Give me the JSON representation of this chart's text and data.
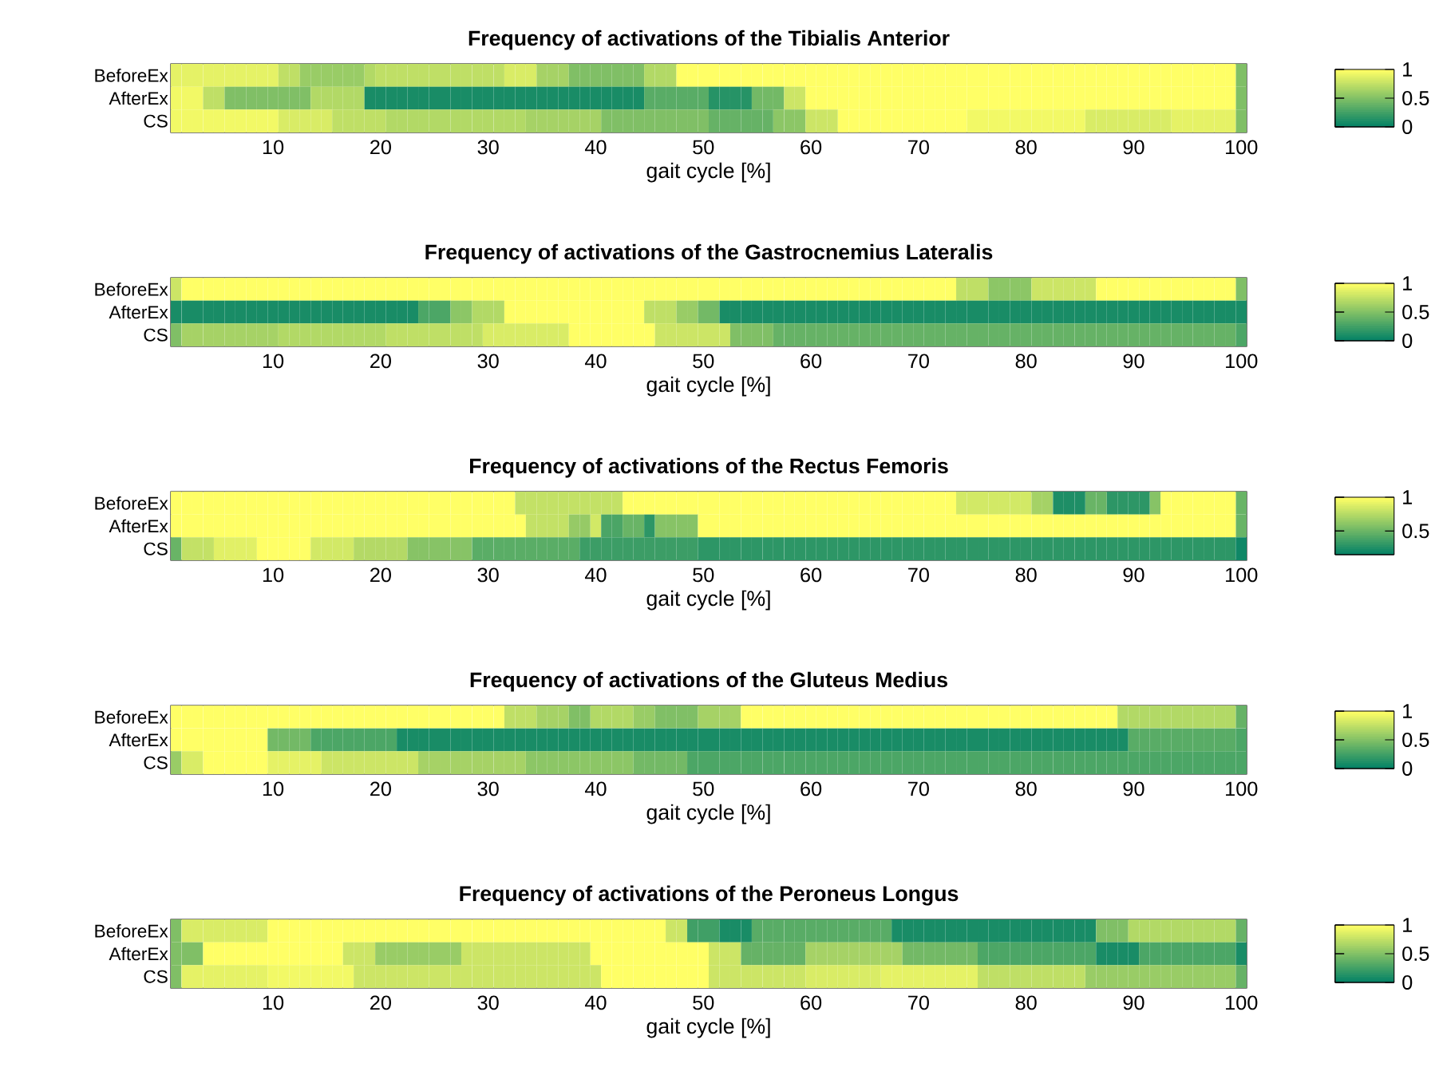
{
  "chart_data": [
    {
      "type": "heatmap",
      "title": "Frequency of activations of the Tibialis Anterior",
      "xlabel": "gait cycle [%]",
      "x": [
        1,
        2,
        3,
        4,
        5,
        6,
        7,
        8,
        9,
        10,
        11,
        12,
        13,
        14,
        15,
        16,
        17,
        18,
        19,
        20,
        21,
        22,
        23,
        24,
        25,
        26,
        27,
        28,
        29,
        30,
        31,
        32,
        33,
        34,
        35,
        36,
        37,
        38,
        39,
        40,
        41,
        42,
        43,
        44,
        45,
        46,
        47,
        48,
        49,
        50,
        51,
        52,
        53,
        54,
        55,
        56,
        57,
        58,
        59,
        60,
        61,
        62,
        63,
        64,
        65,
        66,
        67,
        68,
        69,
        70,
        71,
        72,
        73,
        74,
        75,
        76,
        77,
        78,
        79,
        80,
        81,
        82,
        83,
        84,
        85,
        86,
        87,
        88,
        89,
        90,
        91,
        92,
        93,
        94,
        95,
        96,
        97,
        98,
        99,
        100
      ],
      "xlim": [
        0.5,
        100.5
      ],
      "xticks": [
        10,
        20,
        30,
        40,
        50,
        60,
        70,
        80,
        90,
        100
      ],
      "y_categories": [
        "BeforeEx",
        "AfterEx",
        "CS"
      ],
      "clim": [
        0,
        1
      ],
      "cticks": [
        0,
        0.5,
        1
      ],
      "cells": [
        [
          0.9,
          0.9,
          0.9,
          0.9,
          0.9,
          0.9,
          0.9,
          0.9,
          0.9,
          0.9,
          0.75,
          0.75,
          0.6,
          0.6,
          0.6,
          0.6,
          0.6,
          0.6,
          0.7,
          0.75,
          0.75,
          0.75,
          0.75,
          0.75,
          0.75,
          0.75,
          0.75,
          0.75,
          0.75,
          0.75,
          0.75,
          0.85,
          0.85,
          0.85,
          0.65,
          0.65,
          0.65,
          0.5,
          0.5,
          0.5,
          0.5,
          0.5,
          0.5,
          0.5,
          0.7,
          0.7,
          0.7,
          1,
          1,
          1,
          1,
          1,
          1,
          1,
          1,
          1,
          1,
          1,
          1,
          1,
          1,
          1,
          1,
          1,
          1,
          1,
          1,
          1,
          1,
          1,
          1,
          1,
          1,
          1,
          1,
          1,
          1,
          1,
          1,
          1,
          1,
          1,
          1,
          1,
          1,
          1,
          1,
          1,
          1,
          1,
          1,
          1,
          1,
          1,
          1,
          1,
          1,
          1,
          1,
          0.5
        ],
        [
          0.95,
          0.95,
          0.95,
          0.75,
          0.75,
          0.5,
          0.5,
          0.5,
          0.5,
          0.5,
          0.5,
          0.5,
          0.5,
          0.7,
          0.7,
          0.7,
          0.7,
          0.7,
          0.1,
          0.1,
          0.1,
          0.1,
          0.1,
          0.1,
          0.1,
          0.1,
          0.1,
          0.1,
          0.1,
          0.1,
          0.1,
          0.1,
          0.1,
          0.1,
          0.1,
          0.1,
          0.1,
          0.1,
          0.1,
          0.1,
          0.1,
          0.1,
          0.1,
          0.1,
          0.35,
          0.35,
          0.35,
          0.35,
          0.35,
          0.35,
          0.15,
          0.15,
          0.15,
          0.15,
          0.45,
          0.45,
          0.45,
          0.8,
          0.8,
          1,
          1,
          1,
          1,
          1,
          1,
          1,
          1,
          1,
          1,
          1,
          1,
          1,
          1,
          1,
          1,
          1,
          1,
          1,
          1,
          1,
          1,
          1,
          1,
          1,
          1,
          1,
          1,
          1,
          1,
          1,
          1,
          1,
          1,
          1,
          1,
          1,
          1,
          1,
          1,
          0.5
        ],
        [
          0.95,
          0.95,
          0.95,
          0.95,
          0.95,
          0.95,
          0.95,
          0.95,
          0.95,
          0.95,
          0.85,
          0.85,
          0.85,
          0.85,
          0.85,
          0.75,
          0.75,
          0.75,
          0.75,
          0.75,
          0.7,
          0.7,
          0.7,
          0.7,
          0.7,
          0.7,
          0.7,
          0.7,
          0.7,
          0.7,
          0.7,
          0.7,
          0.7,
          0.65,
          0.65,
          0.65,
          0.65,
          0.65,
          0.65,
          0.65,
          0.5,
          0.5,
          0.5,
          0.5,
          0.5,
          0.5,
          0.5,
          0.5,
          0.5,
          0.5,
          0.4,
          0.4,
          0.4,
          0.4,
          0.4,
          0.4,
          0.55,
          0.55,
          0.55,
          0.8,
          0.8,
          0.8,
          1,
          1,
          1,
          1,
          1,
          1,
          1,
          1,
          1,
          1,
          1,
          1,
          0.95,
          0.95,
          0.95,
          0.95,
          0.95,
          0.95,
          0.95,
          0.95,
          0.95,
          0.95,
          0.95,
          0.85,
          0.85,
          0.85,
          0.85,
          0.85,
          0.85,
          0.85,
          0.85,
          0.9,
          0.9,
          0.9,
          0.9,
          0.9,
          0.9,
          0.5
        ]
      ]
    },
    {
      "type": "heatmap",
      "title": "Frequency of activations of the Gastrocnemius Lateralis",
      "xlabel": "gait cycle [%]",
      "x": [
        1,
        2,
        3,
        4,
        5,
        6,
        7,
        8,
        9,
        10,
        11,
        12,
        13,
        14,
        15,
        16,
        17,
        18,
        19,
        20,
        21,
        22,
        23,
        24,
        25,
        26,
        27,
        28,
        29,
        30,
        31,
        32,
        33,
        34,
        35,
        36,
        37,
        38,
        39,
        40,
        41,
        42,
        43,
        44,
        45,
        46,
        47,
        48,
        49,
        50,
        51,
        52,
        53,
        54,
        55,
        56,
        57,
        58,
        59,
        60,
        61,
        62,
        63,
        64,
        65,
        66,
        67,
        68,
        69,
        70,
        71,
        72,
        73,
        74,
        75,
        76,
        77,
        78,
        79,
        80,
        81,
        82,
        83,
        84,
        85,
        86,
        87,
        88,
        89,
        90,
        91,
        92,
        93,
        94,
        95,
        96,
        97,
        98,
        99,
        100
      ],
      "xlim": [
        0.5,
        100.5
      ],
      "xticks": [
        10,
        20,
        30,
        40,
        50,
        60,
        70,
        80,
        90,
        100
      ],
      "y_categories": [
        "BeforeEx",
        "AfterEx",
        "CS"
      ],
      "clim": [
        0,
        1
      ],
      "cticks": [
        0,
        0.5,
        1
      ],
      "cells": [
        [
          0.8,
          1,
          1,
          1,
          1,
          1,
          1,
          1,
          1,
          1,
          1,
          1,
          1,
          1,
          1,
          1,
          1,
          1,
          1,
          1,
          1,
          1,
          1,
          1,
          1,
          1,
          1,
          1,
          1,
          1,
          1,
          1,
          1,
          1,
          1,
          1,
          1,
          1,
          1,
          1,
          1,
          1,
          1,
          1,
          1,
          1,
          1,
          1,
          1,
          1,
          1,
          1,
          1,
          1,
          1,
          1,
          1,
          1,
          1,
          1,
          1,
          1,
          1,
          1,
          1,
          1,
          1,
          1,
          1,
          1,
          1,
          1,
          1,
          0.75,
          0.75,
          0.75,
          0.55,
          0.55,
          0.55,
          0.55,
          0.8,
          0.8,
          0.8,
          0.8,
          0.8,
          0.8,
          1,
          1,
          1,
          1,
          1,
          1,
          1,
          1,
          1,
          1,
          1,
          1,
          1,
          0.5
        ],
        [
          0.1,
          0.1,
          0.1,
          0.1,
          0.1,
          0.1,
          0.1,
          0.1,
          0.1,
          0.1,
          0.1,
          0.1,
          0.1,
          0.1,
          0.1,
          0.1,
          0.1,
          0.1,
          0.1,
          0.1,
          0.1,
          0.1,
          0.1,
          0.3,
          0.3,
          0.3,
          0.55,
          0.55,
          0.7,
          0.7,
          0.7,
          1,
          1,
          1,
          1,
          1,
          1,
          1,
          1,
          1,
          1,
          1,
          1,
          1,
          0.75,
          0.75,
          0.75,
          0.6,
          0.6,
          0.45,
          0.45,
          0.1,
          0.1,
          0.1,
          0.1,
          0.1,
          0.1,
          0.1,
          0.1,
          0.1,
          0.1,
          0.1,
          0.1,
          0.1,
          0.1,
          0.1,
          0.1,
          0.1,
          0.1,
          0.1,
          0.1,
          0.1,
          0.1,
          0.1,
          0.1,
          0.1,
          0.1,
          0.1,
          0.1,
          0.1,
          0.1,
          0.1,
          0.1,
          0.1,
          0.1,
          0.1,
          0.1,
          0.1,
          0.1,
          0.1,
          0.1,
          0.1,
          0.1,
          0.1,
          0.1,
          0.1,
          0.1,
          0.1,
          0.1,
          0.1
        ],
        [
          0.5,
          0.65,
          0.65,
          0.65,
          0.65,
          0.65,
          0.65,
          0.65,
          0.65,
          0.65,
          0.7,
          0.7,
          0.7,
          0.7,
          0.7,
          0.7,
          0.7,
          0.7,
          0.7,
          0.7,
          0.75,
          0.75,
          0.75,
          0.75,
          0.75,
          0.75,
          0.75,
          0.75,
          0.75,
          0.85,
          0.85,
          0.85,
          0.85,
          0.85,
          0.85,
          0.85,
          0.85,
          1,
          1,
          1,
          1,
          1,
          1,
          1,
          1,
          0.8,
          0.8,
          0.8,
          0.8,
          0.8,
          0.8,
          0.8,
          0.5,
          0.5,
          0.5,
          0.5,
          0.4,
          0.4,
          0.4,
          0.4,
          0.4,
          0.4,
          0.4,
          0.4,
          0.4,
          0.4,
          0.4,
          0.4,
          0.4,
          0.4,
          0.4,
          0.4,
          0.4,
          0.4,
          0.4,
          0.4,
          0.4,
          0.4,
          0.4,
          0.4,
          0.4,
          0.4,
          0.4,
          0.4,
          0.4,
          0.4,
          0.4,
          0.4,
          0.4,
          0.4,
          0.4,
          0.4,
          0.4,
          0.4,
          0.4,
          0.4,
          0.4,
          0.4,
          0.4,
          0.3
        ]
      ]
    },
    {
      "type": "heatmap",
      "title": "Frequency of activations of the Rectus Femoris",
      "xlabel": "gait cycle [%]",
      "x": [
        1,
        2,
        3,
        4,
        5,
        6,
        7,
        8,
        9,
        10,
        11,
        12,
        13,
        14,
        15,
        16,
        17,
        18,
        19,
        20,
        21,
        22,
        23,
        24,
        25,
        26,
        27,
        28,
        29,
        30,
        31,
        32,
        33,
        34,
        35,
        36,
        37,
        38,
        39,
        40,
        41,
        42,
        43,
        44,
        45,
        46,
        47,
        48,
        49,
        50,
        51,
        52,
        53,
        54,
        55,
        56,
        57,
        58,
        59,
        60,
        61,
        62,
        63,
        64,
        65,
        66,
        67,
        68,
        69,
        70,
        71,
        72,
        73,
        74,
        75,
        76,
        77,
        78,
        79,
        80,
        81,
        82,
        83,
        84,
        85,
        86,
        87,
        88,
        89,
        90,
        91,
        92,
        93,
        94,
        95,
        96,
        97,
        98,
        99,
        100
      ],
      "xlim": [
        0.5,
        100.5
      ],
      "xticks": [
        10,
        20,
        30,
        40,
        50,
        60,
        70,
        80,
        90,
        100
      ],
      "y_categories": [
        "BeforeEx",
        "AfterEx",
        "CS"
      ],
      "clim": [
        0.15,
        1
      ],
      "cticks": [
        0.5,
        1
      ],
      "cells": [
        [
          1,
          1,
          1,
          1,
          1,
          1,
          1,
          1,
          1,
          1,
          1,
          1,
          1,
          1,
          1,
          1,
          1,
          1,
          1,
          1,
          1,
          1,
          1,
          1,
          1,
          1,
          1,
          1,
          1,
          1,
          1,
          1,
          0.8,
          0.8,
          0.8,
          0.8,
          0.8,
          0.8,
          0.8,
          0.8,
          0.8,
          0.8,
          1,
          1,
          1,
          1,
          1,
          1,
          1,
          1,
          1,
          1,
          1,
          1,
          1,
          1,
          1,
          1,
          1,
          1,
          1,
          1,
          1,
          1,
          1,
          1,
          1,
          1,
          1,
          1,
          1,
          1,
          1,
          0.85,
          0.85,
          0.85,
          0.85,
          0.85,
          0.85,
          0.85,
          0.7,
          0.7,
          0.25,
          0.25,
          0.25,
          0.5,
          0.5,
          0.3,
          0.3,
          0.3,
          0.3,
          0.6,
          1,
          1,
          1,
          1,
          1,
          1,
          1,
          0.5
        ],
        [
          1,
          1,
          1,
          1,
          1,
          1,
          1,
          1,
          1,
          1,
          1,
          1,
          1,
          1,
          1,
          1,
          1,
          1,
          1,
          1,
          1,
          1,
          1,
          1,
          1,
          1,
          1,
          1,
          1,
          1,
          1,
          1,
          1,
          0.8,
          0.8,
          0.8,
          0.8,
          0.65,
          0.65,
          0.85,
          0.4,
          0.4,
          0.5,
          0.5,
          0.3,
          0.6,
          0.6,
          0.6,
          0.6,
          1,
          1,
          1,
          1,
          1,
          1,
          1,
          1,
          1,
          1,
          1,
          1,
          1,
          1,
          1,
          1,
          1,
          1,
          1,
          1,
          1,
          1,
          1,
          1,
          1,
          1,
          1,
          1,
          1,
          1,
          1,
          1,
          1,
          1,
          1,
          1,
          1,
          1,
          1,
          1,
          1,
          1,
          1,
          1,
          1,
          1,
          1,
          1,
          1,
          1,
          0.5
        ],
        [
          0.5,
          0.8,
          0.8,
          0.8,
          0.9,
          0.9,
          0.9,
          0.9,
          1,
          1,
          1,
          1,
          1,
          0.85,
          0.85,
          0.85,
          0.85,
          0.75,
          0.75,
          0.75,
          0.75,
          0.75,
          0.6,
          0.6,
          0.6,
          0.6,
          0.6,
          0.6,
          0.45,
          0.45,
          0.45,
          0.45,
          0.45,
          0.45,
          0.45,
          0.45,
          0.45,
          0.45,
          0.35,
          0.35,
          0.35,
          0.35,
          0.35,
          0.35,
          0.35,
          0.35,
          0.35,
          0.35,
          0.35,
          0.3,
          0.3,
          0.3,
          0.3,
          0.3,
          0.3,
          0.3,
          0.3,
          0.3,
          0.3,
          0.3,
          0.3,
          0.3,
          0.3,
          0.3,
          0.3,
          0.3,
          0.3,
          0.3,
          0.3,
          0.3,
          0.3,
          0.3,
          0.3,
          0.3,
          0.3,
          0.3,
          0.3,
          0.3,
          0.3,
          0.3,
          0.3,
          0.3,
          0.3,
          0.3,
          0.3,
          0.3,
          0.3,
          0.3,
          0.3,
          0.3,
          0.3,
          0.3,
          0.3,
          0.3,
          0.3,
          0.3,
          0.3,
          0.3,
          0.3,
          0.2
        ]
      ]
    },
    {
      "type": "heatmap",
      "title": "Frequency of activations of the Gluteus Medius",
      "xlabel": "gait cycle [%]",
      "x": [
        1,
        2,
        3,
        4,
        5,
        6,
        7,
        8,
        9,
        10,
        11,
        12,
        13,
        14,
        15,
        16,
        17,
        18,
        19,
        20,
        21,
        22,
        23,
        24,
        25,
        26,
        27,
        28,
        29,
        30,
        31,
        32,
        33,
        34,
        35,
        36,
        37,
        38,
        39,
        40,
        41,
        42,
        43,
        44,
        45,
        46,
        47,
        48,
        49,
        50,
        51,
        52,
        53,
        54,
        55,
        56,
        57,
        58,
        59,
        60,
        61,
        62,
        63,
        64,
        65,
        66,
        67,
        68,
        69,
        70,
        71,
        72,
        73,
        74,
        75,
        76,
        77,
        78,
        79,
        80,
        81,
        82,
        83,
        84,
        85,
        86,
        87,
        88,
        89,
        90,
        91,
        92,
        93,
        94,
        95,
        96,
        97,
        98,
        99,
        100
      ],
      "xlim": [
        0.5,
        100.5
      ],
      "xticks": [
        10,
        20,
        30,
        40,
        50,
        60,
        70,
        80,
        90,
        100
      ],
      "y_categories": [
        "BeforeEx",
        "AfterEx",
        "CS"
      ],
      "clim": [
        0,
        1
      ],
      "cticks": [
        0,
        0.5,
        1
      ],
      "cells": [
        [
          1,
          1,
          1,
          1,
          1,
          1,
          1,
          1,
          1,
          1,
          1,
          1,
          1,
          1,
          1,
          1,
          1,
          1,
          1,
          1,
          1,
          1,
          1,
          1,
          1,
          1,
          1,
          1,
          1,
          1,
          1,
          0.75,
          0.75,
          0.75,
          0.65,
          0.65,
          0.65,
          0.5,
          0.5,
          0.7,
          0.7,
          0.7,
          0.7,
          0.6,
          0.6,
          0.5,
          0.5,
          0.5,
          0.5,
          0.65,
          0.65,
          0.65,
          0.65,
          1,
          1,
          1,
          1,
          1,
          1,
          1,
          1,
          1,
          1,
          1,
          1,
          1,
          1,
          1,
          1,
          1,
          1,
          1,
          1,
          1,
          1,
          1,
          1,
          1,
          1,
          1,
          1,
          1,
          1,
          1,
          1,
          1,
          1,
          1,
          0.7,
          0.7,
          0.7,
          0.7,
          0.7,
          0.7,
          0.7,
          0.7,
          0.7,
          0.7,
          0.7,
          0.4
        ],
        [
          1,
          1,
          1,
          1,
          1,
          1,
          1,
          1,
          1,
          0.45,
          0.45,
          0.45,
          0.45,
          0.3,
          0.3,
          0.3,
          0.3,
          0.3,
          0.3,
          0.3,
          0.3,
          0.1,
          0.1,
          0.1,
          0.1,
          0.1,
          0.1,
          0.1,
          0.1,
          0.1,
          0.1,
          0.1,
          0.1,
          0.1,
          0.1,
          0.1,
          0.1,
          0.1,
          0.1,
          0.1,
          0.1,
          0.1,
          0.1,
          0.1,
          0.1,
          0.1,
          0.1,
          0.1,
          0.1,
          0.1,
          0.1,
          0.1,
          0.1,
          0.1,
          0.1,
          0.1,
          0.1,
          0.1,
          0.1,
          0.1,
          0.1,
          0.1,
          0.1,
          0.1,
          0.1,
          0.1,
          0.1,
          0.1,
          0.1,
          0.1,
          0.1,
          0.1,
          0.1,
          0.1,
          0.1,
          0.1,
          0.1,
          0.1,
          0.1,
          0.1,
          0.1,
          0.1,
          0.1,
          0.1,
          0.1,
          0.1,
          0.1,
          0.1,
          0.1,
          0.35,
          0.35,
          0.35,
          0.35,
          0.35,
          0.35,
          0.35,
          0.35,
          0.35,
          0.35,
          0.3
        ],
        [
          0.6,
          0.85,
          0.85,
          1,
          1,
          1,
          1,
          1,
          1,
          0.9,
          0.9,
          0.9,
          0.9,
          0.9,
          0.8,
          0.8,
          0.8,
          0.8,
          0.8,
          0.8,
          0.8,
          0.8,
          0.8,
          0.65,
          0.65,
          0.65,
          0.65,
          0.65,
          0.65,
          0.65,
          0.65,
          0.65,
          0.65,
          0.55,
          0.55,
          0.55,
          0.55,
          0.55,
          0.55,
          0.55,
          0.55,
          0.55,
          0.55,
          0.45,
          0.45,
          0.45,
          0.45,
          0.45,
          0.3,
          0.3,
          0.3,
          0.3,
          0.3,
          0.3,
          0.3,
          0.3,
          0.3,
          0.3,
          0.3,
          0.3,
          0.3,
          0.3,
          0.3,
          0.3,
          0.3,
          0.3,
          0.3,
          0.3,
          0.3,
          0.3,
          0.3,
          0.3,
          0.3,
          0.3,
          0.3,
          0.3,
          0.3,
          0.3,
          0.3,
          0.3,
          0.3,
          0.3,
          0.3,
          0.3,
          0.3,
          0.3,
          0.3,
          0.3,
          0.3,
          0.3,
          0.3,
          0.3,
          0.3,
          0.3,
          0.3,
          0.3,
          0.3,
          0.3,
          0.3,
          0.3
        ]
      ]
    },
    {
      "type": "heatmap",
      "title": "Frequency of activations of the Peroneus Longus",
      "xlabel": "gait cycle [%]",
      "x": [
        1,
        2,
        3,
        4,
        5,
        6,
        7,
        8,
        9,
        10,
        11,
        12,
        13,
        14,
        15,
        16,
        17,
        18,
        19,
        20,
        21,
        22,
        23,
        24,
        25,
        26,
        27,
        28,
        29,
        30,
        31,
        32,
        33,
        34,
        35,
        36,
        37,
        38,
        39,
        40,
        41,
        42,
        43,
        44,
        45,
        46,
        47,
        48,
        49,
        50,
        51,
        52,
        53,
        54,
        55,
        56,
        57,
        58,
        59,
        60,
        61,
        62,
        63,
        64,
        65,
        66,
        67,
        68,
        69,
        70,
        71,
        72,
        73,
        74,
        75,
        76,
        77,
        78,
        79,
        80,
        81,
        82,
        83,
        84,
        85,
        86,
        87,
        88,
        89,
        90,
        91,
        92,
        93,
        94,
        95,
        96,
        97,
        98,
        99,
        100
      ],
      "xlim": [
        0.5,
        100.5
      ],
      "xticks": [
        10,
        20,
        30,
        40,
        50,
        60,
        70,
        80,
        90,
        100
      ],
      "y_categories": [
        "BeforeEx",
        "AfterEx",
        "CS"
      ],
      "clim": [
        0,
        1
      ],
      "cticks": [
        0,
        0.5,
        1
      ],
      "cells": [
        [
          0.5,
          0.85,
          0.85,
          0.85,
          0.85,
          0.85,
          0.85,
          0.85,
          0.85,
          1,
          1,
          1,
          1,
          1,
          1,
          1,
          1,
          1,
          1,
          1,
          1,
          1,
          1,
          1,
          1,
          1,
          1,
          1,
          1,
          1,
          1,
          1,
          1,
          1,
          1,
          1,
          1,
          1,
          1,
          1,
          1,
          1,
          1,
          1,
          1,
          1,
          0.8,
          0.8,
          0.25,
          0.25,
          0.25,
          0.1,
          0.1,
          0.1,
          0.35,
          0.35,
          0.35,
          0.35,
          0.35,
          0.35,
          0.35,
          0.35,
          0.35,
          0.35,
          0.35,
          0.35,
          0.35,
          0.1,
          0.1,
          0.1,
          0.1,
          0.1,
          0.1,
          0.1,
          0.1,
          0.1,
          0.1,
          0.1,
          0.1,
          0.1,
          0.1,
          0.1,
          0.1,
          0.1,
          0.1,
          0.1,
          0.5,
          0.5,
          0.5,
          0.7,
          0.7,
          0.7,
          0.7,
          0.7,
          0.7,
          0.7,
          0.7,
          0.7,
          0.7,
          0.4
        ],
        [
          0.5,
          0.5,
          0.5,
          1,
          1,
          1,
          1,
          1,
          1,
          1,
          1,
          1,
          1,
          1,
          1,
          1,
          0.8,
          0.8,
          0.8,
          0.6,
          0.6,
          0.6,
          0.6,
          0.6,
          0.6,
          0.6,
          0.6,
          0.8,
          0.8,
          0.8,
          0.8,
          0.8,
          0.8,
          0.8,
          0.8,
          0.8,
          0.8,
          0.8,
          0.8,
          1,
          1,
          1,
          1,
          1,
          1,
          1,
          1,
          1,
          1,
          1,
          0.8,
          0.8,
          0.8,
          0.4,
          0.4,
          0.4,
          0.4,
          0.4,
          0.4,
          0.65,
          0.65,
          0.65,
          0.65,
          0.65,
          0.65,
          0.65,
          0.65,
          0.65,
          0.45,
          0.45,
          0.45,
          0.45,
          0.45,
          0.45,
          0.45,
          0.3,
          0.3,
          0.3,
          0.3,
          0.3,
          0.3,
          0.3,
          0.3,
          0.3,
          0.3,
          0.3,
          0.1,
          0.1,
          0.1,
          0.1,
          0.3,
          0.3,
          0.3,
          0.3,
          0.3,
          0.3,
          0.3,
          0.3,
          0.3,
          0.1
        ],
        [
          0.5,
          0.9,
          0.9,
          0.9,
          0.9,
          0.9,
          0.9,
          0.9,
          0.9,
          0.95,
          0.95,
          0.95,
          0.95,
          0.95,
          0.95,
          0.95,
          0.95,
          0.8,
          0.8,
          0.8,
          0.8,
          0.8,
          0.8,
          0.8,
          0.8,
          0.8,
          0.8,
          0.8,
          0.8,
          0.8,
          0.8,
          0.8,
          0.8,
          0.8,
          0.8,
          0.8,
          0.8,
          0.8,
          0.8,
          0.8,
          1,
          1,
          1,
          1,
          1,
          1,
          1,
          1,
          1,
          1,
          0.8,
          0.8,
          0.8,
          0.8,
          0.8,
          0.8,
          0.8,
          0.8,
          0.8,
          0.85,
          0.85,
          0.85,
          0.85,
          0.85,
          0.85,
          0.85,
          0.9,
          0.9,
          0.9,
          0.9,
          0.9,
          0.9,
          0.9,
          0.9,
          0.9,
          0.75,
          0.75,
          0.75,
          0.75,
          0.75,
          0.75,
          0.75,
          0.75,
          0.75,
          0.75,
          0.6,
          0.6,
          0.6,
          0.6,
          0.6,
          0.6,
          0.6,
          0.6,
          0.6,
          0.6,
          0.6,
          0.6,
          0.6,
          0.6,
          0.4
        ]
      ]
    }
  ]
}
